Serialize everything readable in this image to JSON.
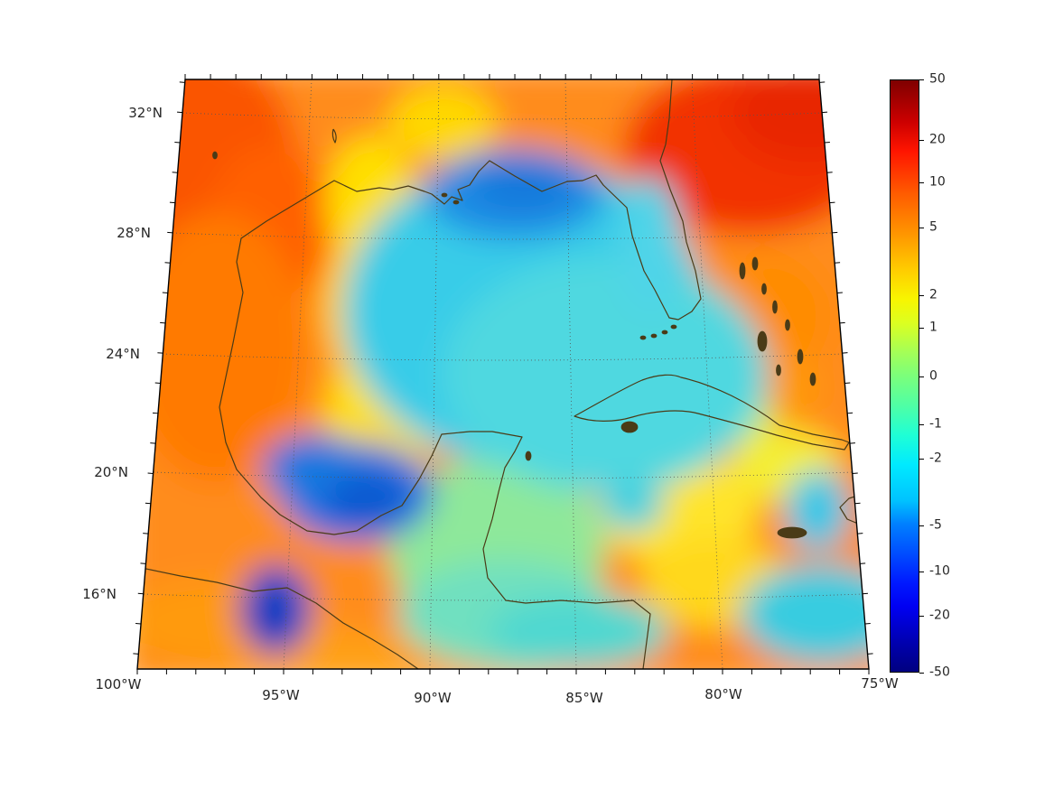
{
  "figure": {
    "map": {
      "x_tick_labels": [
        "100°W",
        "95°W",
        "90°W",
        "85°W",
        "80°W",
        "75°W"
      ],
      "y_tick_labels": [
        "32°N",
        "28°N",
        "24°N",
        "20°N",
        "16°N"
      ],
      "coastline_color": "#4a3b17",
      "gridline_style": "dotted"
    },
    "colorbar": {
      "tick_labels": [
        "50",
        "20",
        "10",
        "5",
        "2",
        "1",
        "0",
        "-1",
        "-2",
        "-5",
        "-10",
        "-20",
        "-50"
      ],
      "vmin": -50,
      "vmax": 50,
      "scale": "symlog",
      "colormap": "jet"
    }
  },
  "chart_data": {
    "type": "heatmap",
    "title": "",
    "region": "Gulf of Mexico, Florida, Cuba and western Caribbean",
    "projection": "conic (trapezoidal graticule)",
    "x_ticks": [
      "100°W",
      "95°W",
      "90°W",
      "85°W",
      "80°W",
      "75°W"
    ],
    "y_ticks": [
      "32°N",
      "28°N",
      "24°N",
      "20°N",
      "16°N"
    ],
    "colorbar_ticks": [
      50,
      20,
      10,
      5,
      2,
      1,
      0,
      -1,
      -2,
      -5,
      -10,
      -20,
      -50
    ],
    "colorbar_range": [
      -50,
      50
    ],
    "colorbar_scale": "symlog",
    "colormap": "jet",
    "field_description": "Anomaly field: positive values (orange/red) over land margins, western Gulf rim and Atlantic east of Florida; negative values (cyan/blue) over the central and northern Gulf of Mexico, western Caribbean, with strong negative cores near the Louisiana shelf, the western Gulf (~94W 20N) and ~95W 15N"
  }
}
